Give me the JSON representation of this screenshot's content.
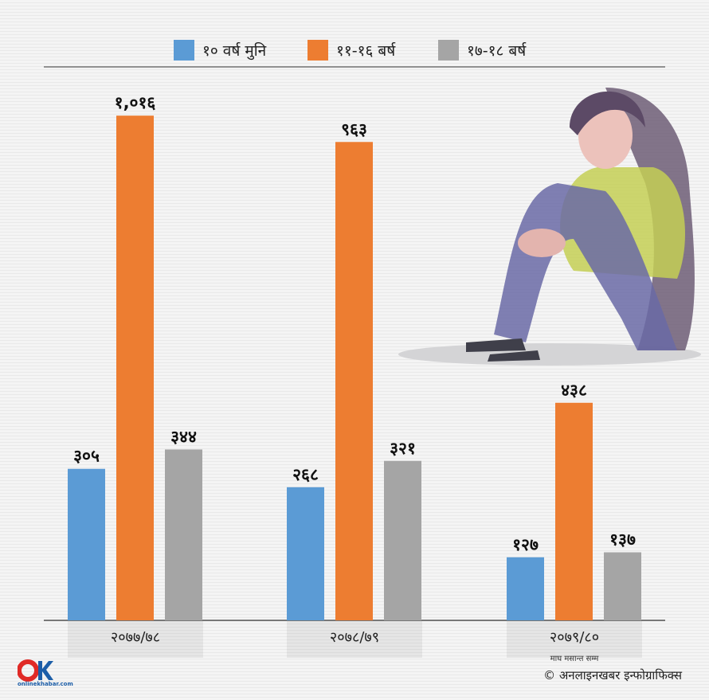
{
  "chart_data": {
    "type": "bar",
    "categories": [
      "२०७७/७८",
      "२०७८/७९",
      "२०७९/८०"
    ],
    "category_notes": [
      "",
      "",
      "माघ मसान्त सम्म"
    ],
    "series": [
      {
        "name": "१० वर्ष मुनि",
        "color": "#5b9bd5",
        "values": [
          305,
          268,
          127
        ],
        "labels": [
          "३०५",
          "२६८",
          "१२७"
        ]
      },
      {
        "name": "११-१६ बर्ष",
        "color": "#ed7d31",
        "values": [
          1016,
          963,
          438
        ],
        "labels": [
          "१,०१६",
          "९६३",
          "४३८"
        ]
      },
      {
        "name": "१७-१८ बर्ष",
        "color": "#a5a5a5",
        "values": [
          344,
          321,
          137
        ],
        "labels": [
          "३४४",
          "३२१",
          "१३७"
        ]
      }
    ],
    "ylim": [
      0,
      1050
    ],
    "legend_position": "top",
    "grid": false
  },
  "credit": "© अनलाइनखबर इन्फोग्राफिक्स",
  "logo": {
    "mark": "OK",
    "text": "onlinekhabar.com"
  },
  "illustration": "sad-girl-sitting"
}
